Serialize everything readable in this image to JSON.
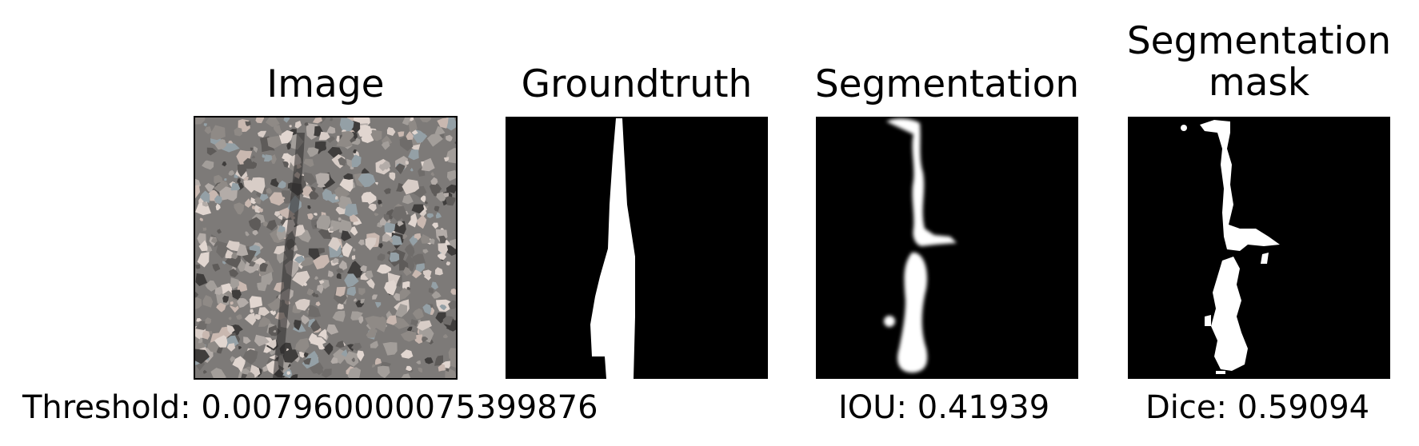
{
  "panels": [
    {
      "id": "image",
      "title": "Image"
    },
    {
      "id": "groundtruth",
      "title": "Groundtruth"
    },
    {
      "id": "segmentation",
      "title": "Segmentation"
    },
    {
      "id": "segmentation_mask",
      "title_line1": "Segmentation",
      "title_line2": "mask"
    }
  ],
  "captions": {
    "threshold": "Threshold: 0.007960000075399876",
    "iou": "IOU: 0.41939",
    "dice": "Dice: 0.59094"
  },
  "colors": {
    "background": "#ffffff",
    "mask_bg": "#000000",
    "mask_fg": "#ffffff",
    "gravel": "#7d7a78"
  }
}
